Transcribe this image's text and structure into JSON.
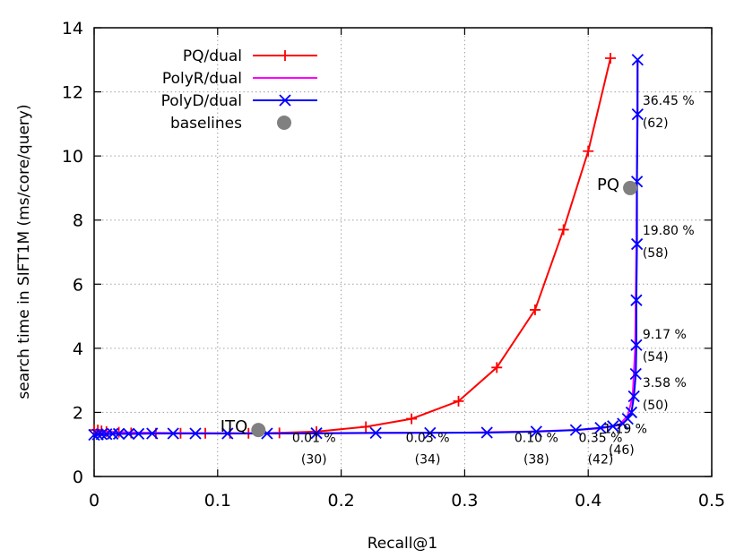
{
  "chart_data": {
    "type": "line",
    "title": "",
    "xlabel": "Recall@1",
    "ylabel": "search time in SIFT1M (ms/core/query)",
    "xlim": [
      0,
      0.5
    ],
    "ylim": [
      0,
      14
    ],
    "xticks": [
      0,
      0.1,
      0.2,
      0.3,
      0.4,
      0.5
    ],
    "xtick_labels": [
      "0",
      "0.1",
      "0.2",
      "0.3",
      "0.4",
      "0.5"
    ],
    "yticks": [
      0,
      2,
      4,
      6,
      8,
      10,
      12,
      14
    ],
    "ytick_labels": [
      "0",
      "2",
      "4",
      "6",
      "8",
      "10",
      "12",
      "14"
    ],
    "grid": true,
    "legend_position": "top-left",
    "series": [
      {
        "name": "PQ/dual",
        "color": "#ff0000",
        "marker": "plus",
        "x": [
          0.0,
          0.003,
          0.006,
          0.01,
          0.02,
          0.03,
          0.05,
          0.07,
          0.09,
          0.11,
          0.125,
          0.15,
          0.18,
          0.22,
          0.257,
          0.295,
          0.326,
          0.357,
          0.38,
          0.4,
          0.418
        ],
        "y": [
          1.45,
          1.45,
          1.42,
          1.4,
          1.38,
          1.36,
          1.35,
          1.35,
          1.35,
          1.35,
          1.35,
          1.36,
          1.4,
          1.55,
          1.8,
          2.35,
          3.4,
          5.2,
          7.7,
          10.15,
          13.05
        ]
      },
      {
        "name": "PolyR/dual",
        "color": "#ff00ff",
        "marker": "none",
        "x": [
          0.0,
          0.02,
          0.05,
          0.1,
          0.15,
          0.2,
          0.25,
          0.3,
          0.35,
          0.39,
          0.41,
          0.425,
          0.432,
          0.436,
          0.438,
          0.439,
          0.44
        ],
        "y": [
          1.4,
          1.38,
          1.36,
          1.35,
          1.35,
          1.35,
          1.36,
          1.37,
          1.4,
          1.45,
          1.5,
          1.6,
          1.9,
          2.5,
          4.0,
          7.0,
          13.0
        ]
      },
      {
        "name": "PolyD/dual",
        "color": "#0000ff",
        "marker": "x",
        "x": [
          0.0,
          0.003,
          0.006,
          0.01,
          0.015,
          0.02,
          0.028,
          0.036,
          0.047,
          0.064,
          0.082,
          0.108,
          0.14,
          0.18,
          0.228,
          0.272,
          0.318,
          0.358,
          0.39,
          0.41,
          0.42,
          0.428,
          0.432,
          0.435,
          0.437,
          0.4385,
          0.439,
          0.439,
          0.4395,
          0.4395,
          0.44,
          0.44
        ],
        "y": [
          1.3,
          1.31,
          1.32,
          1.32,
          1.33,
          1.33,
          1.33,
          1.33,
          1.34,
          1.34,
          1.34,
          1.34,
          1.34,
          1.35,
          1.36,
          1.36,
          1.37,
          1.4,
          1.45,
          1.52,
          1.57,
          1.65,
          1.8,
          2.0,
          2.5,
          3.2,
          4.1,
          5.5,
          7.25,
          9.2,
          11.3,
          13.0
        ]
      }
    ],
    "baselines": {
      "name": "baselines",
      "color": "#808080",
      "points": [
        {
          "label": "ITQ",
          "x": 0.133,
          "y": 1.45
        },
        {
          "label": "PQ",
          "x": 0.434,
          "y": 9.0
        }
      ]
    },
    "annotations": [
      {
        "text": "0.01 %",
        "x": 0.178,
        "y": 1.08
      },
      {
        "text": "(30)",
        "x": 0.178,
        "y": 0.4
      },
      {
        "text": "0.03 %",
        "x": 0.27,
        "y": 1.08
      },
      {
        "text": "(34)",
        "x": 0.27,
        "y": 0.4
      },
      {
        "text": "0.10 %",
        "x": 0.358,
        "y": 1.08
      },
      {
        "text": "(38)",
        "x": 0.358,
        "y": 0.4
      },
      {
        "text": "0.35 %",
        "x": 0.41,
        "y": 1.08
      },
      {
        "text": "(42)",
        "x": 0.41,
        "y": 0.4
      },
      {
        "text": "1.19 %",
        "x": 0.43,
        "y": 1.35
      },
      {
        "text": "(46)",
        "x": 0.427,
        "y": 0.7
      },
      {
        "text": "3.58 %",
        "x": 0.444,
        "y": 2.8
      },
      {
        "text": "(50)",
        "x": 0.444,
        "y": 2.1
      },
      {
        "text": "9.17 %",
        "x": 0.444,
        "y": 4.3
      },
      {
        "text": "(54)",
        "x": 0.444,
        "y": 3.6
      },
      {
        "text": "19.80 %",
        "x": 0.444,
        "y": 7.55
      },
      {
        "text": "(58)",
        "x": 0.444,
        "y": 6.85
      },
      {
        "text": "36.45 %",
        "x": 0.444,
        "y": 11.6
      },
      {
        "text": "(62)",
        "x": 0.444,
        "y": 10.9
      }
    ]
  }
}
